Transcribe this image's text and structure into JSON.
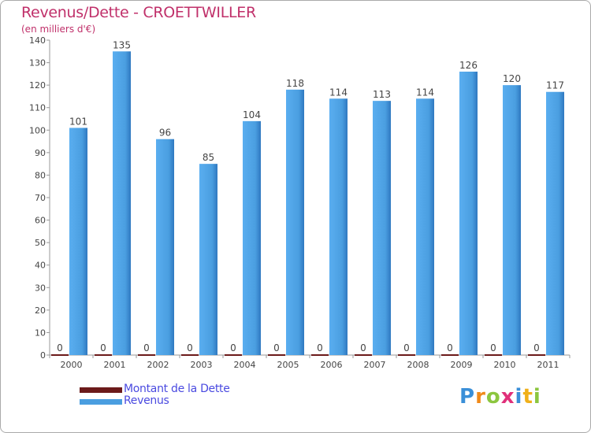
{
  "title": "Revenus/Dette - CROETTWILLER",
  "subtitle": "(en milliers d'€)",
  "chart_data": {
    "type": "bar",
    "categories": [
      "2000",
      "2001",
      "2002",
      "2003",
      "2004",
      "2005",
      "2006",
      "2007",
      "2008",
      "2009",
      "2010",
      "2011"
    ],
    "series": [
      {
        "name": "Montant de la Dette",
        "values": [
          0,
          0,
          0,
          0,
          0,
          0,
          0,
          0,
          0,
          0,
          0,
          0
        ],
        "color": "#6b1a1a"
      },
      {
        "name": "Revenus",
        "values": [
          101,
          135,
          96,
          85,
          104,
          118,
          114,
          113,
          114,
          126,
          120,
          117
        ],
        "color": "#4a9ee0"
      }
    ],
    "ylim": [
      0,
      140
    ],
    "yticks": [
      0,
      10,
      20,
      30,
      40,
      50,
      60,
      70,
      80,
      90,
      100,
      110,
      120,
      130,
      140
    ],
    "xlabel": "",
    "ylabel": "",
    "grid": false,
    "legend_position": "bottom-left"
  },
  "legend": [
    {
      "label": "Montant de la Dette",
      "color": "#6b1a1a"
    },
    {
      "label": "Revenus",
      "color": "#4a9ee0"
    }
  ],
  "logo": {
    "letters": [
      "P",
      "r",
      "o",
      "x",
      "i",
      "t",
      "i"
    ],
    "colors": [
      "#3a8fd8",
      "#f08a1a",
      "#8cc63f",
      "#e0307a",
      "#3a8fd8",
      "#f0b01a",
      "#8cc63f"
    ]
  }
}
